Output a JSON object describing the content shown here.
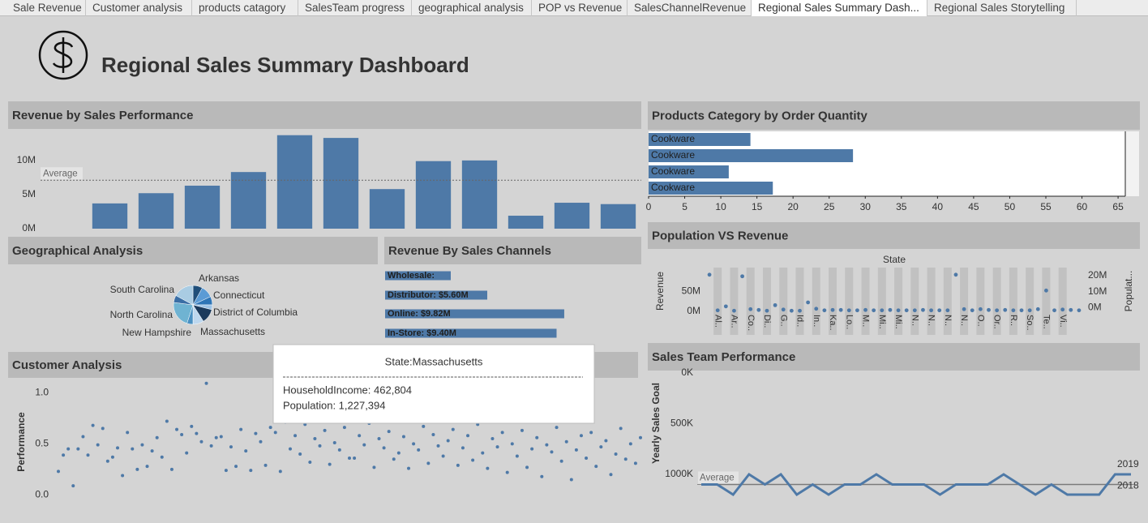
{
  "tabs": [
    "Sale Revenue",
    "Customer analysis",
    "products catagory",
    "SalesTeam progress",
    "geographical analysis",
    "POP vs Revenue",
    "SalesChannelRevenue",
    "Regional Sales Summary Dash...",
    "Regional Sales Storytelling"
  ],
  "active_tab": 7,
  "header": {
    "title": "Regional Sales Summary Dashboard"
  },
  "chart_data": [
    {
      "type": "bar",
      "title": "Revenue by Sales Performance",
      "categories": [
        null,
        null,
        null,
        null,
        null,
        null,
        null,
        null,
        null,
        null,
        null,
        null
      ],
      "values": [
        3.7,
        5.2,
        6.3,
        8.3,
        13.7,
        13.3,
        5.8,
        9.9,
        10.0,
        1.9,
        3.8,
        3.6
      ],
      "color": "#4e79a7",
      "ylim": [
        0,
        14.5
      ],
      "yticks": [
        {
          "value": 0,
          "label": "0M"
        },
        {
          "value": 5,
          "label": "5M"
        },
        {
          "value": 10,
          "label": "10M"
        }
      ],
      "reference_line": {
        "label": "Average",
        "value": 7.1
      }
    },
    {
      "type": "barh",
      "title": "Products Category by Order Quantity",
      "categories": [
        "Cookware",
        "Cookware",
        "Cookware",
        "Cookware"
      ],
      "values": [
        14.1,
        28.3,
        11.1,
        17.2
      ],
      "color": "#4e79a7",
      "xlim": [
        0,
        66
      ],
      "xticks": [
        0,
        5,
        10,
        15,
        20,
        25,
        30,
        35,
        40,
        45,
        50,
        55,
        60,
        65
      ]
    },
    {
      "type": "dot",
      "title": "Population VS Revenue",
      "x_label": "State",
      "y_label": "Revenue",
      "y2_label": "Populat...",
      "categories": [
        null,
        "Al..",
        null,
        "Ar..",
        null,
        "Co..",
        null,
        "Di..",
        null,
        "G..",
        null,
        "Id..",
        null,
        "In..",
        null,
        "Ka..",
        null,
        "Lo..",
        null,
        "M..",
        null,
        "Mi..",
        null,
        "Mi..",
        null,
        "N..",
        null,
        "N..",
        null,
        "N..",
        null,
        "N..",
        null,
        "O..",
        null,
        "Or..",
        null,
        "R..",
        null,
        "So..",
        null,
        "Te..",
        null,
        "Vi..",
        null,
        null
      ],
      "values": [
        92,
        2,
        12,
        1,
        88,
        5,
        3,
        1,
        15,
        4,
        1,
        1,
        22,
        6,
        2,
        3,
        3,
        2,
        2,
        3,
        2,
        2,
        3,
        2,
        2,
        2,
        3,
        2,
        2,
        2,
        92,
        5,
        2,
        5,
        3,
        2,
        3,
        2,
        2,
        2,
        5,
        52,
        2,
        4,
        3,
        2
      ],
      "color": "#4e79a7",
      "ylim": [
        -60,
        110
      ],
      "yticks": [
        {
          "value": 0,
          "label": "0M"
        },
        {
          "value": 50,
          "label": "50M"
        }
      ],
      "y2lim": [
        -17,
        25
      ],
      "y2ticks": [
        {
          "value": 0,
          "label": "0M"
        },
        {
          "value": 10,
          "label": "10M"
        },
        {
          "value": 20,
          "label": "20M"
        }
      ]
    },
    {
      "type": "pie",
      "title": "Geographical Analysis",
      "labels": [
        "Arkansas",
        "Connecticut",
        "District of Columbia",
        null,
        "Massachusetts",
        "New Hampshire",
        null,
        "North Carolina",
        null,
        "South Carolina"
      ],
      "values": [
        8,
        10,
        7,
        4,
        12,
        9,
        5,
        22,
        6,
        17
      ],
      "colors": [
        "#1f4e79",
        "#5b9bd5",
        "#2e75b6",
        "#9dc3e6",
        "#1b3a5c",
        "#bdd7ee",
        "#4a90c2",
        "#6fb3d2",
        "#3a6ea5",
        "#a9cce3"
      ]
    },
    {
      "type": "barh",
      "title": "Revenue By Sales Channels",
      "values": [
        3.6,
        5.6,
        9.82,
        9.4
      ],
      "value_labels": [
        "Wholesale:",
        "Distributor: $5.60M",
        "Online: $9.82M",
        "In-Store: $9.40M"
      ],
      "color": "#4e79a7",
      "xlim": [
        0,
        14
      ]
    },
    {
      "type": "scatter",
      "title": "Customer Analysis",
      "y_label": "Performance",
      "values": [
        0.23,
        0.39,
        0.45,
        0.09,
        0.45,
        0.57,
        0.39,
        0.68,
        0.49,
        0.65,
        0.33,
        0.37,
        0.46,
        0.19,
        0.61,
        0.45,
        0.25,
        0.49,
        0.28,
        0.43,
        0.56,
        0.37,
        0.72,
        0.25,
        0.64,
        0.59,
        0.41,
        0.67,
        0.6,
        0.52,
        1.09,
        0.48,
        0.56,
        0.57,
        0.24,
        0.47,
        0.28,
        0.64,
        0.43,
        0.24,
        0.6,
        0.52,
        0.29,
        0.66,
        0.61,
        0.23,
        0.71,
        0.45,
        0.58,
        0.4,
        0.69,
        0.32,
        0.55,
        0.48,
        0.63,
        0.3,
        0.51,
        0.44,
        0.66,
        0.36,
        0.36,
        0.58,
        0.49,
        0.7,
        0.27,
        0.55,
        0.46,
        0.62,
        0.35,
        0.41,
        0.57,
        0.26,
        0.5,
        0.44,
        0.67,
        0.31,
        0.59,
        0.48,
        0.38,
        0.53,
        0.64,
        0.29,
        0.46,
        0.58,
        0.34,
        0.69,
        0.41,
        0.26,
        0.55,
        0.47,
        0.61,
        0.22,
        0.5,
        0.38,
        0.63,
        0.27,
        0.45,
        0.56,
        0.18,
        0.49,
        0.42,
        0.66,
        0.33,
        0.52,
        0.15,
        0.44,
        0.58,
        0.36,
        0.61,
        0.28,
        0.47,
        0.53,
        0.2,
        0.4,
        0.65,
        0.35,
        0.5,
        0.31,
        0.56
      ],
      "color": "#4e79a7",
      "ylim": [
        -0.02,
        1.12
      ],
      "yticks": [
        {
          "value": 0,
          "label": "0.0"
        },
        0.5,
        {
          "value": 1,
          "label": "1.0"
        }
      ]
    },
    {
      "type": "line",
      "title": "Sales Team Performance",
      "y_label": "Yearly Sales Goal",
      "reversed": true,
      "ylim": [
        0,
        1200
      ],
      "yticks": [
        {
          "value": 0,
          "label": "0K"
        },
        {
          "value": 500,
          "label": "500K"
        },
        {
          "value": 1000,
          "label": "1000K"
        }
      ],
      "series": [
        {
          "name": "2019",
          "color": "#4e79a7",
          "values": [
            1100,
            1100,
            1200,
            1000,
            1100,
            1000,
            1200,
            1100,
            1200,
            1100,
            1100,
            1000,
            1100,
            1100,
            1100,
            1200,
            1100,
            1100,
            1100,
            1000,
            1100,
            1200,
            1100,
            1200,
            1200,
            1200,
            1000,
            1000
          ]
        },
        {
          "name": "2018",
          "color": "#7a7a7a",
          "values": [
            1100,
            1100,
            1100,
            1100,
            1100,
            1100,
            1100,
            1100,
            1100,
            1100,
            1100,
            1100,
            1100,
            1100,
            1100,
            1100,
            1100,
            1100,
            1100,
            1100,
            1100,
            1100,
            1100,
            1100,
            1100,
            1100,
            1100,
            1100
          ]
        }
      ],
      "reference_line": {
        "label": "Average",
        "value": 1100
      }
    }
  ],
  "tooltip": {
    "title": "State:Massachusetts",
    "lines": [
      "HouseholdIncome: 462,804",
      "Population: 1,227,394"
    ]
  }
}
